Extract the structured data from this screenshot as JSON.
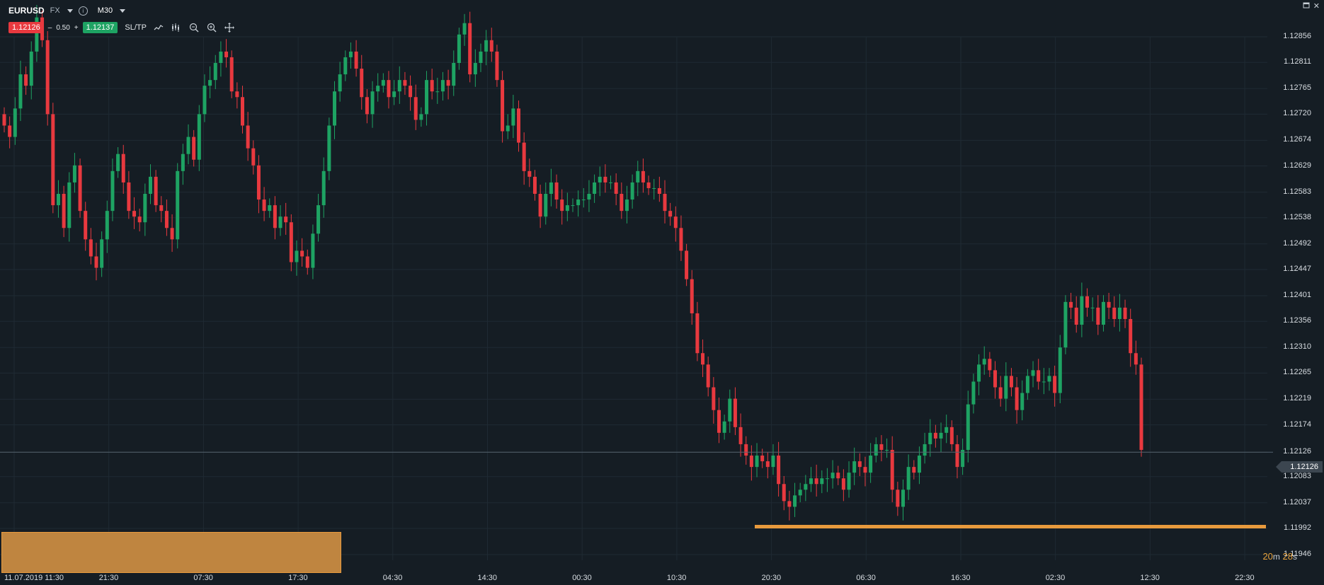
{
  "header": {
    "symbol": "EURUSD",
    "market": "FX",
    "info_icon": "info-icon",
    "timeframe": "M30"
  },
  "trade": {
    "bid": "1.12126",
    "spread_minus": "–",
    "spread": "0.50",
    "spread_plus": "+",
    "ask": "1.12137",
    "sltp": "SL/TP",
    "tools": [
      "line-chart-icon",
      "indicators-icon",
      "zoom-out-icon",
      "zoom-in-icon",
      "crosshair-icon"
    ]
  },
  "window": {
    "restore_icon": "restore-icon",
    "close_label": "✕"
  },
  "current_price": "1.12126",
  "countdown": {
    "min": "20",
    "min_unit": "m",
    "sec": "28",
    "sec_unit": "s"
  },
  "colors": {
    "bull": "#1ea363",
    "bear": "#e8393f",
    "highlight": "#e89a3d",
    "background": "#151d24"
  },
  "chart_data": {
    "type": "candlestick",
    "symbol": "EURUSD",
    "interval": "M30",
    "y_ticks": [
      "1.12856",
      "1.12811",
      "1.12765",
      "1.12720",
      "1.12674",
      "1.12629",
      "1.12583",
      "1.12538",
      "1.12492",
      "1.12447",
      "1.12401",
      "1.12356",
      "1.12310",
      "1.12265",
      "1.12219",
      "1.12174",
      "1.12126",
      "1.12083",
      "1.12037",
      "1.11992",
      "1.11946"
    ],
    "ylim": [
      1.11946,
      1.12856
    ],
    "x_ticks": [
      "11.07.2019 11:30",
      "21:30",
      "07:30",
      "17:30",
      "04:30",
      "14:30",
      "00:30",
      "10:30",
      "20:30",
      "06:30",
      "16:30",
      "02:30",
      "12:30",
      "22:30"
    ],
    "support_level": 1.12017,
    "last_price": 1.12126,
    "series": [
      {
        "name": "EURUSD",
        "close": [
          1.127,
          1.1268,
          1.1273,
          1.1279,
          1.1277,
          1.1283,
          1.1289,
          1.1285,
          1.1272,
          1.1256,
          1.1258,
          1.1252,
          1.126,
          1.1263,
          1.1255,
          1.125,
          1.1247,
          1.1245,
          1.125,
          1.1255,
          1.1262,
          1.1265,
          1.126,
          1.1255,
          1.1254,
          1.1253,
          1.1258,
          1.1261,
          1.1256,
          1.1255,
          1.1252,
          1.125,
          1.1262,
          1.1265,
          1.1268,
          1.1264,
          1.1272,
          1.1277,
          1.1278,
          1.1281,
          1.1283,
          1.1282,
          1.1276,
          1.1275,
          1.127,
          1.1266,
          1.1263,
          1.1257,
          1.1255,
          1.1256,
          1.1252,
          1.1254,
          1.1253,
          1.1246,
          1.1248,
          1.1247,
          1.1245,
          1.1251,
          1.1256,
          1.1262,
          1.127,
          1.1276,
          1.1279,
          1.1282,
          1.1283,
          1.128,
          1.1275,
          1.1272,
          1.1276,
          1.1277,
          1.1278,
          1.1275,
          1.1276,
          1.1278,
          1.1277,
          1.1275,
          1.1271,
          1.1272,
          1.1278,
          1.1276,
          1.1276,
          1.1278,
          1.1277,
          1.1281,
          1.1286,
          1.1288,
          1.1279,
          1.1281,
          1.1283,
          1.1285,
          1.1283,
          1.1278,
          1.1269,
          1.127,
          1.1273,
          1.1267,
          1.1262,
          1.1261,
          1.1258,
          1.1254,
          1.1258,
          1.126,
          1.1257,
          1.1255,
          1.1256,
          1.1256,
          1.1257,
          1.1257,
          1.1258,
          1.126,
          1.1261,
          1.126,
          1.126,
          1.1258,
          1.1255,
          1.1257,
          1.126,
          1.1262,
          1.126,
          1.1259,
          1.1259,
          1.1258,
          1.1255,
          1.1254,
          1.1252,
          1.1248,
          1.1243,
          1.1237,
          1.123,
          1.1228,
          1.1224,
          1.122,
          1.1216,
          1.1218,
          1.1222,
          1.1217,
          1.1214,
          1.1212,
          1.121,
          1.1212,
          1.1211,
          1.121,
          1.1212,
          1.1207,
          1.1204,
          1.1203,
          1.1205,
          1.1206,
          1.1207,
          1.1208,
          1.1207,
          1.1208,
          1.1208,
          1.1209,
          1.1208,
          1.1206,
          1.1209,
          1.1211,
          1.121,
          1.1209,
          1.1212,
          1.1214,
          1.1213,
          1.1213,
          1.1206,
          1.1203,
          1.1206,
          1.121,
          1.1209,
          1.1212,
          1.1214,
          1.1216,
          1.1215,
          1.1216,
          1.1217,
          1.1214,
          1.121,
          1.1213,
          1.1221,
          1.1225,
          1.1228,
          1.1229,
          1.1227,
          1.1224,
          1.1222,
          1.1226,
          1.1224,
          1.122,
          1.1223,
          1.1226,
          1.1227,
          1.1225,
          1.1225,
          1.1226,
          1.1223,
          1.1231,
          1.1239,
          1.1238,
          1.1235,
          1.124,
          1.1238,
          1.1238,
          1.1235,
          1.1239,
          1.1238,
          1.1236,
          1.1238,
          1.1236,
          1.123,
          1.1228,
          1.1213
        ]
      }
    ]
  }
}
